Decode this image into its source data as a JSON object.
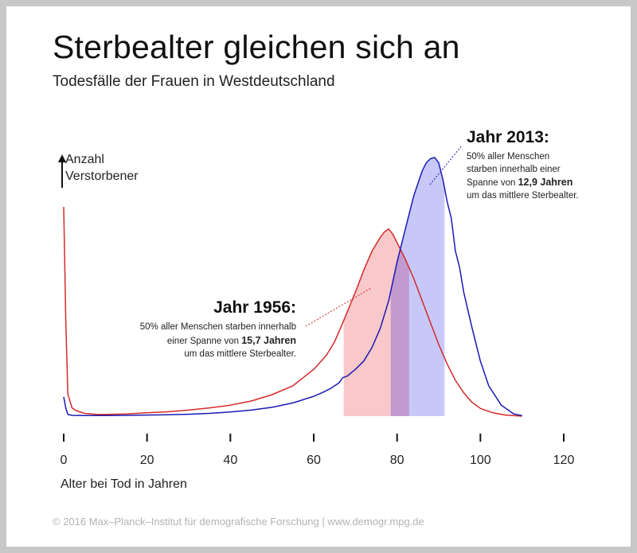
{
  "title": "Sterbealter gleichen sich an",
  "subtitle": "Todesfälle der Frauen in Westdeutschland",
  "y_axis_label_line1": "Anzahl",
  "y_axis_label_line2": "Verstorbener",
  "x_axis_label": "Alter bei Tod in Jahren",
  "footer": "© 2016 Max–Planck–Institut für demografische Forschung | www.demogr.mpg.de",
  "annotations": {
    "y1956": {
      "title": "Jahr 1956:",
      "line1": "50% aller Menschen starben innerhalb",
      "line2_prefix": "einer Spanne von ",
      "line2_bold": "15,7 Jahren",
      "line3": "um das mittlere Sterbealter."
    },
    "y2013": {
      "title": "Jahr 2013:",
      "line1": "50% aller Menschen",
      "line2": "starben innerhalb einer",
      "line3_prefix": "Spanne von ",
      "line3_bold": "12,9 Jahren",
      "line4": "um das mittlere Sterbealter."
    }
  },
  "colors": {
    "y1956_line": "#d42a2a",
    "y1956_band": "#f8c8ca",
    "y2013_line": "#1a1ab4",
    "y2013_band": "#c8c8f8",
    "overlap_band": "#c29ad0"
  },
  "chart_data": {
    "type": "line",
    "xlabel": "Alter bei Tod in Jahren",
    "ylabel": "Anzahl Verstorbener",
    "xlim": [
      0,
      120
    ],
    "ylim": [
      0,
      1
    ],
    "xticks": [
      0,
      20,
      40,
      60,
      80,
      100,
      120
    ],
    "series": [
      {
        "name": "Jahr 1956",
        "x": [
          0,
          0.5,
          1,
          2,
          3,
          5,
          8,
          10,
          15,
          20,
          25,
          30,
          35,
          40,
          45,
          50,
          55,
          60,
          63,
          65,
          67,
          70,
          72,
          74,
          76,
          77,
          78,
          79,
          80,
          81,
          82,
          84,
          86,
          88,
          90,
          92,
          94,
          96,
          98,
          100,
          103,
          106,
          110
        ],
        "y": [
          0.76,
          0.35,
          0.08,
          0.03,
          0.02,
          0.01,
          0.006,
          0.006,
          0.008,
          0.012,
          0.016,
          0.022,
          0.03,
          0.04,
          0.055,
          0.078,
          0.11,
          0.17,
          0.22,
          0.27,
          0.34,
          0.45,
          0.53,
          0.6,
          0.65,
          0.67,
          0.68,
          0.66,
          0.63,
          0.6,
          0.57,
          0.5,
          0.42,
          0.34,
          0.26,
          0.19,
          0.13,
          0.085,
          0.05,
          0.028,
          0.012,
          0.004,
          0.0
        ]
      },
      {
        "name": "Jahr 2013",
        "x": [
          0,
          0.5,
          1,
          2,
          5,
          10,
          15,
          20,
          25,
          30,
          35,
          40,
          45,
          50,
          55,
          60,
          62,
          64,
          66,
          67,
          68,
          70,
          72,
          74,
          76,
          78,
          80,
          82,
          84,
          86,
          87,
          88,
          89,
          90,
          91,
          92,
          93,
          94,
          95,
          96,
          98,
          100,
          102,
          105,
          108,
          110
        ],
        "y": [
          0.07,
          0.03,
          0.006,
          0.003,
          0.002,
          0.002,
          0.003,
          0.004,
          0.005,
          0.007,
          0.01,
          0.015,
          0.022,
          0.032,
          0.048,
          0.072,
          0.085,
          0.1,
          0.12,
          0.14,
          0.145,
          0.17,
          0.2,
          0.25,
          0.32,
          0.42,
          0.56,
          0.68,
          0.8,
          0.89,
          0.92,
          0.935,
          0.94,
          0.92,
          0.86,
          0.78,
          0.72,
          0.6,
          0.54,
          0.45,
          0.32,
          0.2,
          0.11,
          0.04,
          0.008,
          0.002
        ]
      }
    ],
    "bands": [
      {
        "name": "Jahr 1956",
        "x_start": 67.2,
        "x_end": 82.9
      },
      {
        "name": "Jahr 2013",
        "x_start": 78.5,
        "x_end": 91.4
      }
    ]
  }
}
